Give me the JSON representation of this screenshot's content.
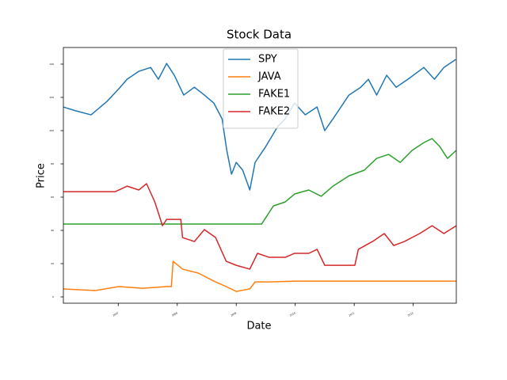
{
  "chart_data": {
    "type": "line",
    "title": "Stock Data",
    "x_label": "Date",
    "y_label": "Price",
    "xlim": [
      2006.07,
      2012.73
    ],
    "xticks": [
      2007,
      2008,
      2009,
      2010,
      2011,
      2012
    ],
    "ylim": [
      -3.8,
      150
    ],
    "yticks": [
      0,
      20,
      40,
      60,
      80,
      100,
      120,
      140
    ],
    "grid": false,
    "legend": "upper center",
    "series": [
      {
        "name": "SPY",
        "color": "#1f77b4",
        "x": [
          2006.07,
          2006.28,
          2006.54,
          2006.81,
          2007.01,
          2007.15,
          2007.35,
          2007.55,
          2007.68,
          2007.82,
          2007.95,
          2008.11,
          2008.29,
          2008.46,
          2008.62,
          2008.76,
          2008.84,
          2008.92,
          2009.0,
          2009.11,
          2009.23,
          2009.32,
          2009.5,
          2009.7,
          2009.83,
          2009.99,
          2010.17,
          2010.37,
          2010.5,
          2010.64,
          2010.91,
          2011.11,
          2011.24,
          2011.38,
          2011.55,
          2011.71,
          2011.91,
          2012.18,
          2012.36,
          2012.52,
          2012.72
        ],
        "values": [
          114.2,
          111.9,
          109.5,
          117.6,
          125.2,
          130.9,
          135.7,
          138.0,
          130.9,
          140.4,
          133.3,
          121.4,
          126.1,
          121.4,
          116.6,
          107.1,
          88.1,
          73.8,
          80.9,
          76.2,
          64.3,
          80.9,
          90.4,
          102.3,
          107.1,
          116.6,
          109.5,
          114.2,
          100.0,
          107.1,
          121.4,
          126.1,
          130.9,
          121.4,
          133.3,
          126.1,
          130.9,
          138.0,
          130.9,
          138.0,
          142.8
        ]
      },
      {
        "name": "JAVA",
        "color": "#ff7f0e",
        "x": [
          2006.07,
          2006.61,
          2007.01,
          2007.42,
          2007.82,
          2007.9,
          2007.93,
          2008.09,
          2008.36,
          2008.62,
          2008.83,
          2009.0,
          2009.23,
          2009.32,
          2009.56,
          2009.99,
          2010.37,
          2011.01,
          2012.73
        ],
        "values": [
          4.8,
          3.8,
          6.2,
          5.2,
          6.2,
          6.2,
          21.4,
          16.7,
          14.3,
          9.5,
          6.2,
          3.3,
          4.8,
          9.0,
          9.0,
          9.5,
          9.5,
          9.5,
          9.5
        ]
      },
      {
        "name": "FAKE1",
        "color": "#2ca02c",
        "x": [
          2006.07,
          2009.43,
          2009.63,
          2009.83,
          2009.99,
          2010.23,
          2010.44,
          2010.64,
          2010.91,
          2011.17,
          2011.38,
          2011.58,
          2011.78,
          2011.98,
          2012.18,
          2012.32,
          2012.45,
          2012.58,
          2012.73
        ],
        "values": [
          43.8,
          43.8,
          54.7,
          57.1,
          61.9,
          64.3,
          60.5,
          66.6,
          72.8,
          76.2,
          83.3,
          85.7,
          80.9,
          88.1,
          92.8,
          95.2,
          90.4,
          83.3,
          88.1
        ]
      },
      {
        "name": "FAKE2",
        "color": "#d62728",
        "x": [
          2006.07,
          2006.95,
          2007.15,
          2007.35,
          2007.48,
          2007.62,
          2007.75,
          2007.82,
          2008.06,
          2008.09,
          2008.29,
          2008.46,
          2008.65,
          2008.83,
          2009.0,
          2009.23,
          2009.36,
          2009.56,
          2009.83,
          2009.99,
          2010.23,
          2010.37,
          2010.5,
          2011.01,
          2011.07,
          2011.31,
          2011.51,
          2011.67,
          2011.85,
          2012.11,
          2012.32,
          2012.52,
          2012.73
        ],
        "values": [
          63.3,
          63.3,
          66.6,
          64.3,
          68.1,
          57.1,
          42.8,
          46.6,
          46.6,
          35.7,
          33.3,
          40.5,
          35.7,
          21.4,
          19.0,
          16.7,
          26.2,
          23.8,
          23.8,
          26.2,
          26.2,
          28.6,
          19.0,
          19.0,
          28.6,
          33.3,
          38.1,
          30.9,
          33.3,
          38.1,
          42.8,
          38.1,
          42.8
        ]
      }
    ]
  }
}
